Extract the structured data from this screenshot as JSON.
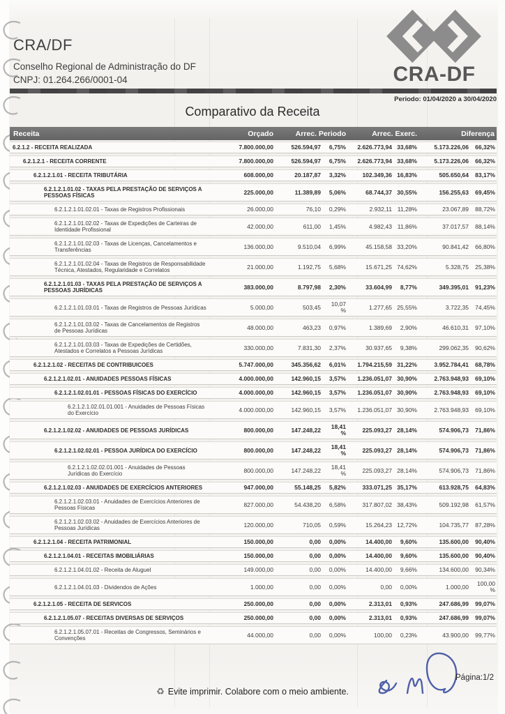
{
  "header": {
    "org_short": "CRA/DF",
    "org_name": "Conselho Regional de Administração do DF",
    "cnpj": "CNPJ: 01.264.266/0001-04",
    "logo_text": "CRA-DF",
    "period": "Periodo: 01/04/2020 a 30/04/2020",
    "title": "Comparativo da Receita"
  },
  "table": {
    "columns": [
      "Receita",
      "Orçado",
      "Arrec. Periodo",
      "Arrec. Exerc.",
      "Diferença"
    ],
    "rows": [
      {
        "level": 0,
        "bold": true,
        "label": "6.2.1.2 - RECEITA REALIZADA",
        "orcado": "7.800.000,00",
        "ap": "526.594,97",
        "ap_pct": "6,75%",
        "ae": "2.626.773,94",
        "ae_pct": "33,68%",
        "dif": "5.173.226,06",
        "dif_pct": "66,32%"
      },
      {
        "level": 1,
        "bold": true,
        "label": "6.2.1.2.1 - RECEITA CORRENTE",
        "orcado": "7.800.000,00",
        "ap": "526.594,97",
        "ap_pct": "6,75%",
        "ae": "2.626.773,94",
        "ae_pct": "33,68%",
        "dif": "5.173.226,06",
        "dif_pct": "66,32%"
      },
      {
        "level": 2,
        "bold": true,
        "label": "6.2.1.2.1.01 - RECEITA TRIBUTÁRIA",
        "orcado": "608.000,00",
        "ap": "20.187,87",
        "ap_pct": "3,32%",
        "ae": "102.349,36",
        "ae_pct": "16,83%",
        "dif": "505.650,64",
        "dif_pct": "83,17%"
      },
      {
        "level": 3,
        "bold": true,
        "label": "6.2.1.2.1.01.02 - TAXAS PELA PRESTAÇÃO DE SERVIÇOS A PESSOAS FÍSICAS",
        "orcado": "225.000,00",
        "ap": "11.389,89",
        "ap_pct": "5,06%",
        "ae": "68.744,37",
        "ae_pct": "30,55%",
        "dif": "156.255,63",
        "dif_pct": "69,45%"
      },
      {
        "level": 4,
        "bold": false,
        "label": "6.2.1.2.1.01.02.01 - Taxas de Registros Profissionais",
        "orcado": "26.000,00",
        "ap": "76,10",
        "ap_pct": "0,29%",
        "ae": "2.932,11",
        "ae_pct": "11,28%",
        "dif": "23.067,89",
        "dif_pct": "88,72%"
      },
      {
        "level": 4,
        "bold": false,
        "label": "6.2.1.2.1.01.02.02 - Taxas de Expedições de Carteiras de Identidade Profissional",
        "orcado": "42.000,00",
        "ap": "611,00",
        "ap_pct": "1,45%",
        "ae": "4.982,43",
        "ae_pct": "11,86%",
        "dif": "37.017,57",
        "dif_pct": "88,14%"
      },
      {
        "level": 4,
        "bold": false,
        "label": "6.2.1.2.1.01.02.03 - Taxas de Licenças, Cancelamentos e Transferências",
        "orcado": "136.000,00",
        "ap": "9.510,04",
        "ap_pct": "6,99%",
        "ae": "45.158,58",
        "ae_pct": "33,20%",
        "dif": "90.841,42",
        "dif_pct": "66,80%"
      },
      {
        "level": 4,
        "bold": false,
        "label": "6.2.1.2.1.01.02.04 - Taxas de Registros de Responsabilidade Técnica, Atestados, Regularidade e Correlatos",
        "orcado": "21.000,00",
        "ap": "1.192,75",
        "ap_pct": "5,68%",
        "ae": "15.671,25",
        "ae_pct": "74,62%",
        "dif": "5.328,75",
        "dif_pct": "25,38%"
      },
      {
        "level": 3,
        "bold": true,
        "label": "6.2.1.2.1.01.03 - TAXAS PELA PRESTAÇÃO DE SERVIÇOS A PESSOAS JURÍDICAS",
        "orcado": "383.000,00",
        "ap": "8.797,98",
        "ap_pct": "2,30%",
        "ae": "33.604,99",
        "ae_pct": "8,77%",
        "dif": "349.395,01",
        "dif_pct": "91,23%"
      },
      {
        "level": 4,
        "bold": false,
        "label": "6.2.1.2.1.01.03.01 - Taxas de Registros de Pessoas Jurídicas",
        "orcado": "5.000,00",
        "ap": "503,45",
        "ap_pct": "10,07\n%",
        "ae": "1.277,65",
        "ae_pct": "25,55%",
        "dif": "3.722,35",
        "dif_pct": "74,45%"
      },
      {
        "level": 4,
        "bold": false,
        "label": "6.2.1.2.1.01.03.02 - Taxas de Cancelamentos de Registros de Pessoas Jurídicas",
        "orcado": "48.000,00",
        "ap": "463,23",
        "ap_pct": "0,97%",
        "ae": "1.389,69",
        "ae_pct": "2,90%",
        "dif": "46.610,31",
        "dif_pct": "97,10%"
      },
      {
        "level": 4,
        "bold": false,
        "label": "6.2.1.2.1.01.03.03 - Taxas de Expedições de Certidões, Atestados e Correlatos a Pessoas Jurídicas",
        "orcado": "330.000,00",
        "ap": "7.831,30",
        "ap_pct": "2,37%",
        "ae": "30.937,65",
        "ae_pct": "9,38%",
        "dif": "299.062,35",
        "dif_pct": "90,62%"
      },
      {
        "level": 2,
        "bold": true,
        "label": "6.2.1.2.1.02 - RECEITAS DE CONTRIBUICOES",
        "orcado": "5.747.000,00",
        "ap": "345.356,62",
        "ap_pct": "6,01%",
        "ae": "1.794.215,59",
        "ae_pct": "31,22%",
        "dif": "3.952.784,41",
        "dif_pct": "68,78%"
      },
      {
        "level": 3,
        "bold": true,
        "label": "6.2.1.2.1.02.01 - ANUIDADES PESSOAS FÍSICAS",
        "orcado": "4.000.000,00",
        "ap": "142.960,15",
        "ap_pct": "3,57%",
        "ae": "1.236.051,07",
        "ae_pct": "30,90%",
        "dif": "2.763.948,93",
        "dif_pct": "69,10%"
      },
      {
        "level": 4,
        "bold": true,
        "label": "6.2.1.2.1.02.01.01 - PESSOAS FÍSICAS DO EXERCÍCIO",
        "orcado": "4.000.000,00",
        "ap": "142.960,15",
        "ap_pct": "3,57%",
        "ae": "1.236.051,07",
        "ae_pct": "30,90%",
        "dif": "2.763.948,93",
        "dif_pct": "69,10%"
      },
      {
        "level": 5,
        "bold": false,
        "label": "6.2.1.2.1.02.01.01.001 - Anuidades de Pessoas Físicas do Exercício",
        "orcado": "4.000.000,00",
        "ap": "142.960,15",
        "ap_pct": "3,57%",
        "ae": "1.236.051,07",
        "ae_pct": "30,90%",
        "dif": "2.763.948,93",
        "dif_pct": "69,10%"
      },
      {
        "level": 3,
        "bold": true,
        "label": "6.2.1.2.1.02.02 - ANUIDADES DE PESSOAS JURÍDICAS",
        "orcado": "800.000,00",
        "ap": "147.248,22",
        "ap_pct": "18,41\n%",
        "ae": "225.093,27",
        "ae_pct": "28,14%",
        "dif": "574.906,73",
        "dif_pct": "71,86%"
      },
      {
        "level": 4,
        "bold": true,
        "label": "6.2.1.2.1.02.02.01 - PESSOA JURÍDICA DO EXERCÍCIO",
        "orcado": "800.000,00",
        "ap": "147.248,22",
        "ap_pct": "18,41\n%",
        "ae": "225.093,27",
        "ae_pct": "28,14%",
        "dif": "574.906,73",
        "dif_pct": "71,86%"
      },
      {
        "level": 5,
        "bold": false,
        "label": "6.2.1.2.1.02.02.01.001 - Anuidades de Pessoas Jurídicas do Exercício",
        "orcado": "800.000,00",
        "ap": "147.248,22",
        "ap_pct": "18,41\n%",
        "ae": "225.093,27",
        "ae_pct": "28,14%",
        "dif": "574.906,73",
        "dif_pct": "71,86%"
      },
      {
        "level": 3,
        "bold": true,
        "label": "6.2.1.2.1.02.03 - ANUIDADES DE EXERCÍCIOS ANTERIORES",
        "orcado": "947.000,00",
        "ap": "55.148,25",
        "ap_pct": "5,82%",
        "ae": "333.071,25",
        "ae_pct": "35,17%",
        "dif": "613.928,75",
        "dif_pct": "64,83%"
      },
      {
        "level": 4,
        "bold": false,
        "label": "6.2.1.2.1.02.03.01 - Anuidades de Exercícios Anteriores de Pessoas Físicas",
        "orcado": "827.000,00",
        "ap": "54.438,20",
        "ap_pct": "6,58%",
        "ae": "317.807,02",
        "ae_pct": "38,43%",
        "dif": "509.192,98",
        "dif_pct": "61,57%"
      },
      {
        "level": 4,
        "bold": false,
        "label": "6.2.1.2.1.02.03.02 - Anuidades de Exercícios Anteriores de Pessoas Jurídicas",
        "orcado": "120.000,00",
        "ap": "710,05",
        "ap_pct": "0,59%",
        "ae": "15.264,23",
        "ae_pct": "12,72%",
        "dif": "104.735,77",
        "dif_pct": "87,28%"
      },
      {
        "level": 2,
        "bold": true,
        "label": "6.2.1.2.1.04 - RECEITA PATRIMONIAL",
        "orcado": "150.000,00",
        "ap": "0,00",
        "ap_pct": "0,00%",
        "ae": "14.400,00",
        "ae_pct": "9,60%",
        "dif": "135.600,00",
        "dif_pct": "90,40%"
      },
      {
        "level": 3,
        "bold": true,
        "label": "6.2.1.2.1.04.01 - RECEITAS IMOBILIÁRIAS",
        "orcado": "150.000,00",
        "ap": "0,00",
        "ap_pct": "0,00%",
        "ae": "14.400,00",
        "ae_pct": "9,60%",
        "dif": "135.600,00",
        "dif_pct": "90,40%"
      },
      {
        "level": 4,
        "bold": false,
        "label": "6.2.1.2.1.04.01.02 - Receita de Aluguel",
        "orcado": "149.000,00",
        "ap": "0,00",
        "ap_pct": "0,00%",
        "ae": "14.400,00",
        "ae_pct": "9,66%",
        "dif": "134.600,00",
        "dif_pct": "90,34%"
      },
      {
        "level": 4,
        "bold": false,
        "label": "6.2.1.2.1.04.01.03 - Dividendos de Ações",
        "orcado": "1.000,00",
        "ap": "0,00",
        "ap_pct": "0,00%",
        "ae": "0,00",
        "ae_pct": "0,00%",
        "dif": "1.000,00",
        "dif_pct": "100,00\n%"
      },
      {
        "level": 2,
        "bold": true,
        "label": "6.2.1.2.1.05 - RECEITA DE SERVICOS",
        "orcado": "250.000,00",
        "ap": "0,00",
        "ap_pct": "0,00%",
        "ae": "2.313,01",
        "ae_pct": "0,93%",
        "dif": "247.686,99",
        "dif_pct": "99,07%"
      },
      {
        "level": 3,
        "bold": true,
        "label": "6.2.1.2.1.05.07 - RECEITAS DIVERSAS DE SERVIÇOS",
        "orcado": "250.000,00",
        "ap": "0,00",
        "ap_pct": "0,00%",
        "ae": "2.313,01",
        "ae_pct": "0,93%",
        "dif": "247.686,99",
        "dif_pct": "99,07%"
      },
      {
        "level": 4,
        "bold": false,
        "label": "6.2.1.2.1.05.07.01 - Receitas de Congressos, Seminários e Convenções",
        "orcado": "44.000,00",
        "ap": "0,00",
        "ap_pct": "0,00%",
        "ae": "100,00",
        "ae_pct": "0,23%",
        "dif": "43.900,00",
        "dif_pct": "99,77%"
      }
    ]
  },
  "footer": {
    "eco_message": "Evite imprimir. Colabore com o meio ambiente.",
    "page_label": "Página:1/2",
    "recycle_icon": "♻"
  },
  "colors": {
    "table_header_bar": "#6e6e6e",
    "divider_bar": "#4f4f4f",
    "logo_gray": "#8c8c8c",
    "signature_blue": "#3c4fa0"
  }
}
